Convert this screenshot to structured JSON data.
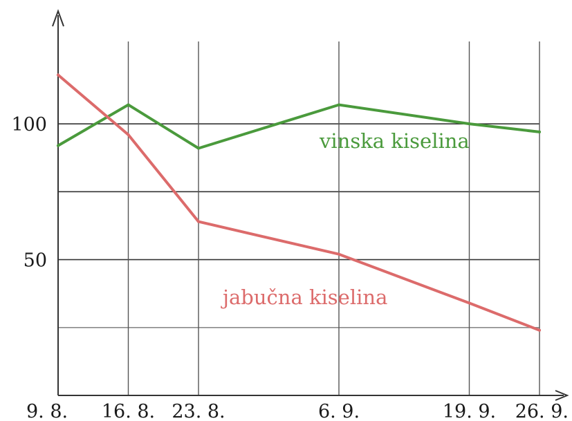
{
  "chart_data": {
    "type": "line",
    "x": [
      "9. 8.",
      "16. 8.",
      "23. 8.",
      "6. 9.",
      "19. 9.",
      "26. 9."
    ],
    "x_day_offsets": [
      0,
      7,
      14,
      28,
      41,
      48
    ],
    "ylim": [
      0,
      140
    ],
    "ytick_labels": [
      "50",
      "100"
    ],
    "gridlines_y": [
      25,
      50,
      75,
      100
    ],
    "grid": true,
    "series": [
      {
        "name": "vinska kiselina",
        "color": "#4a9a3c",
        "values": [
          92,
          107,
          91,
          107,
          100,
          97
        ]
      },
      {
        "name": "jabučna kiselina",
        "color": "#dc6b6b",
        "values": [
          118,
          96,
          64,
          52,
          34,
          24
        ]
      }
    ]
  }
}
